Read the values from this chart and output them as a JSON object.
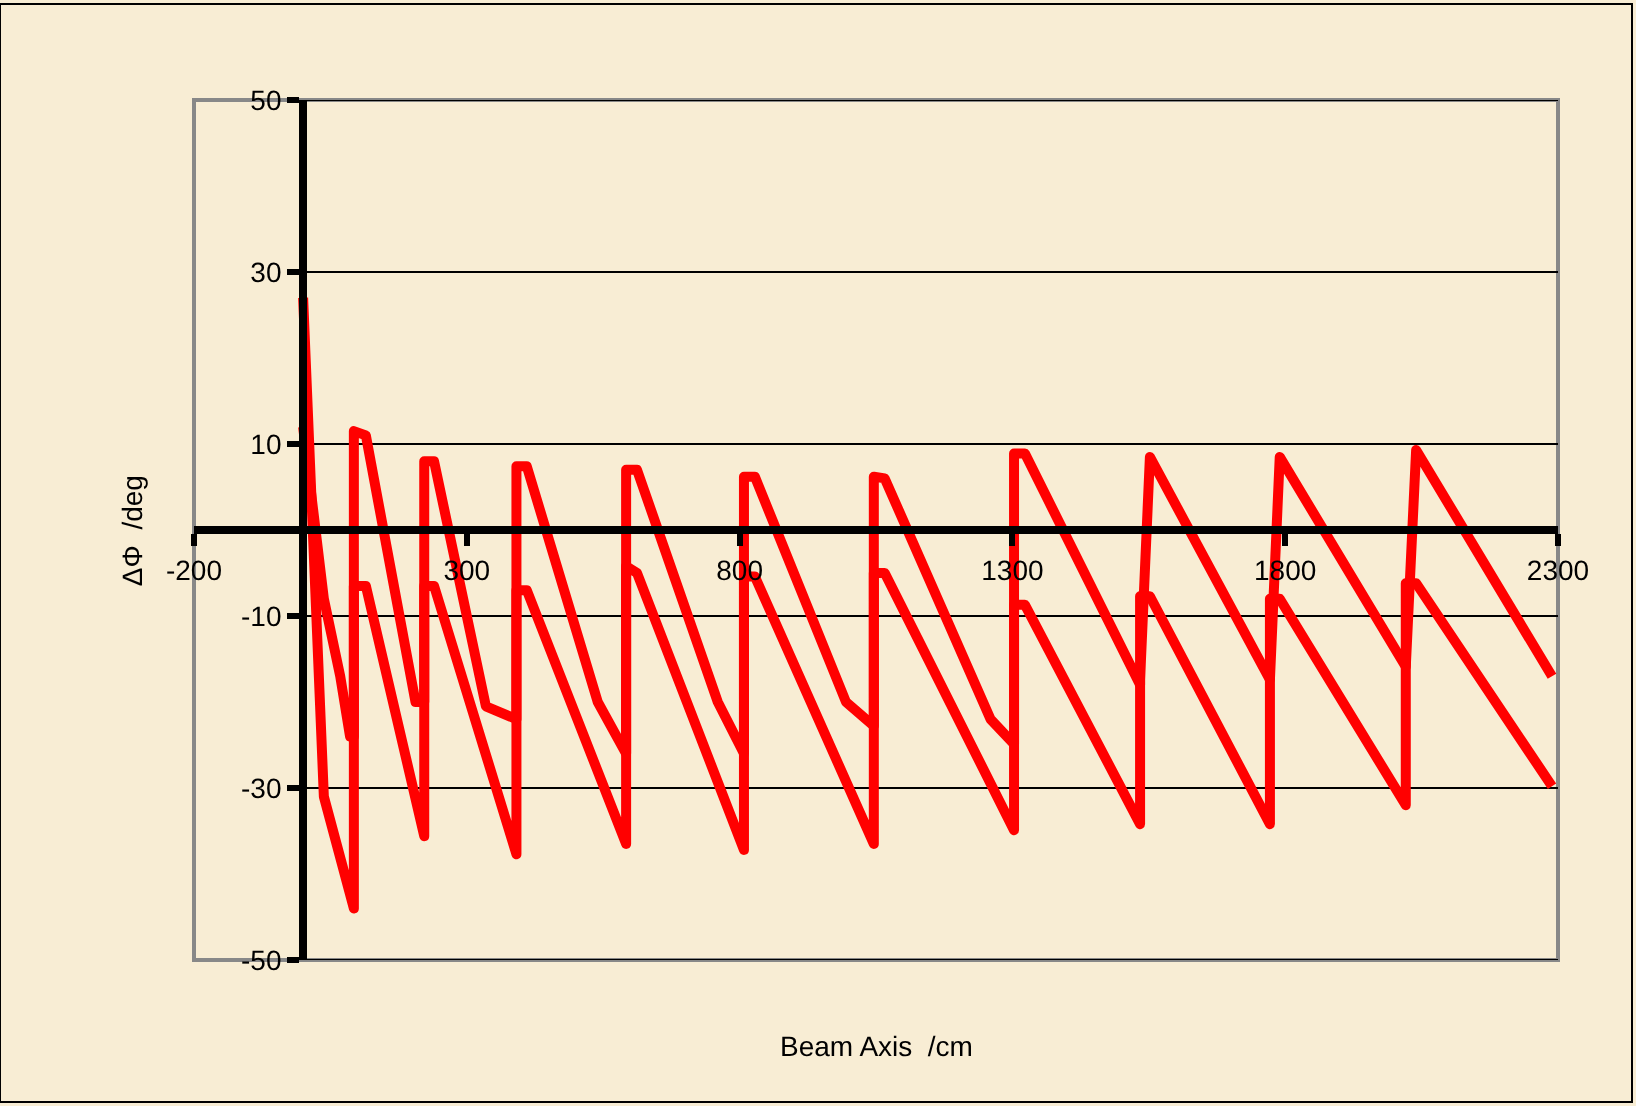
{
  "chart_data": {
    "type": "line",
    "xlabel": "Beam Axis  /cm",
    "ylabel": "ΔΦ  /deg",
    "series": [
      {
        "color": "#ff0000",
        "x": [
          0,
          38,
          93,
          93,
          115,
          206,
          222,
          222,
          240,
          335,
          391,
          391,
          410,
          540,
          592,
          592,
          612,
          760,
          808,
          808,
          828,
          995,
          1046,
          1046,
          1066,
          1260,
          1303,
          1303,
          1323,
          1534,
          1534,
          1552,
          1772,
          1772,
          1790,
          2021,
          2021,
          2040,
          2289
        ],
        "values": [
          27,
          -31,
          -44,
          11.5,
          11,
          -20,
          -20,
          8,
          8,
          -20.5,
          -22,
          7.4,
          7.4,
          -20,
          -26,
          7,
          7,
          -20,
          -26,
          6.2,
          6.2,
          -20,
          -22.8,
          6.2,
          6,
          -22,
          -24.9,
          8.9,
          8.9,
          -18,
          -17.4,
          8.5,
          -17.4,
          -17.4,
          8.5,
          -15.9,
          -15.9,
          9.3,
          -17
        ]
      },
      {
        "color": "#ff0000",
        "x": [
          0,
          38,
          68,
          86,
          93,
          93,
          115,
          222,
          222,
          240,
          391,
          391,
          410,
          592,
          592,
          612,
          808,
          808,
          828,
          1046,
          1046,
          1066,
          1303,
          1303,
          1323,
          1534,
          1534,
          1552,
          1772,
          1772,
          1790,
          2021,
          2021,
          2040,
          2289
        ],
        "values": [
          12,
          -8,
          -17,
          -24,
          -24,
          -6.5,
          -6.5,
          -35.6,
          -6.5,
          -6.5,
          -37.7,
          -7,
          -7,
          -36.5,
          -4.2,
          -5,
          -37.2,
          -5.4,
          -5.4,
          -36.5,
          -5,
          -5,
          -34.9,
          -8.7,
          -8.7,
          -34.2,
          -7.7,
          -7.7,
          -34.2,
          -8,
          -8,
          -32,
          -6.2,
          -6.2,
          -29.8
        ]
      }
    ],
    "xlim": [
      -200,
      2300
    ],
    "xticks": [
      -200,
      300,
      800,
      1300,
      1800,
      2300
    ],
    "ylim": [
      -50,
      50
    ],
    "yticks": [
      -50,
      -30,
      -10,
      10,
      30,
      50
    ],
    "grid": "y",
    "legend": false,
    "marker": "none",
    "line_style": "solid"
  }
}
